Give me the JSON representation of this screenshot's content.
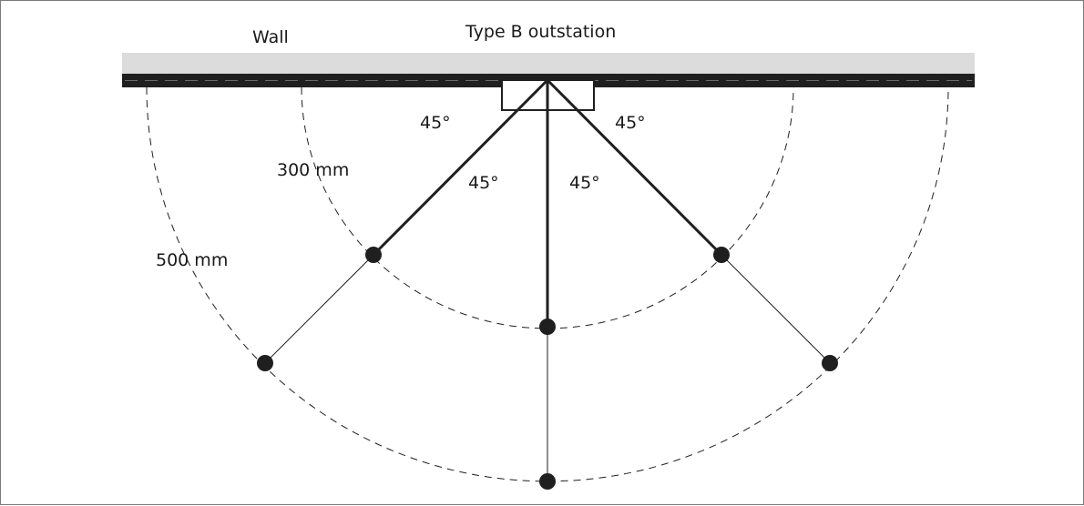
{
  "diagram": {
    "wall_label": "Wall",
    "device_label": "Type B outstation",
    "angle_labels": {
      "outer_left": "45°",
      "outer_right": "45°",
      "inner_left": "45°",
      "inner_right": "45°"
    },
    "radius_labels": {
      "inner": "300 mm",
      "outer": "500 mm"
    },
    "radii_mm": [
      300,
      500
    ],
    "spoke_angles_deg": [
      -45,
      0,
      45
    ],
    "colors": {
      "wall_fill": "#dcdcdc",
      "wall_line": "#1f1f1f",
      "ink": "#1f1f1f"
    }
  }
}
